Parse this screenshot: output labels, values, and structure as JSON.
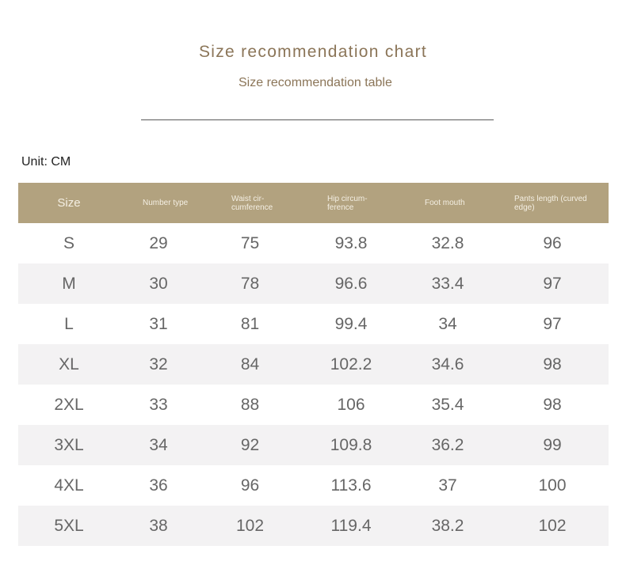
{
  "header": {
    "title": "Size recommendation chart",
    "subtitle": "Size recommendation table"
  },
  "unit_label": "Unit: CM",
  "table": {
    "columns": [
      "Size",
      "Number type",
      "Waist cir- cumference",
      "Hip circum- ference",
      "Foot mouth",
      "Pants length (curved edge)"
    ],
    "rows": [
      [
        "S",
        "29",
        "75",
        "93.8",
        "32.8",
        "96"
      ],
      [
        "M",
        "30",
        "78",
        "96.6",
        "33.4",
        "97"
      ],
      [
        "L",
        "31",
        "81",
        "99.4",
        "34",
        "97"
      ],
      [
        "XL",
        "32",
        "84",
        "102.2",
        "34.6",
        "98"
      ],
      [
        "2XL",
        "33",
        "88",
        "106",
        "35.4",
        "98"
      ],
      [
        "3XL",
        "34",
        "92",
        "109.8",
        "36.2",
        "99"
      ],
      [
        "4XL",
        "36",
        "96",
        "113.6",
        "37",
        "100"
      ],
      [
        "5XL",
        "38",
        "102",
        "119.4",
        "38.2",
        "102"
      ]
    ]
  },
  "colors": {
    "header_bg": "#b2a27f",
    "title_text": "#8b7558",
    "alt_row_bg": "#f3f2f3"
  }
}
